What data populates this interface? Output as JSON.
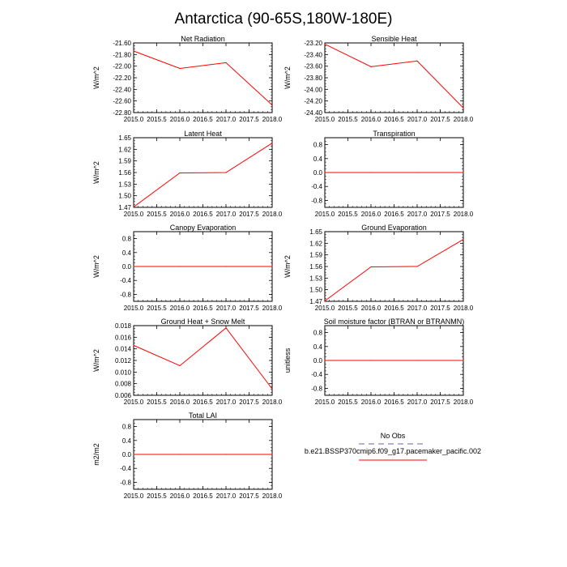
{
  "figure_title": "Antarctica (90-65S,180W-180E)",
  "legend": {
    "items": [
      {
        "label": "No Obs",
        "color": "#9999cc",
        "dashed": true
      },
      {
        "label": "b.e21.BSSP370cmip6.f09_g17.pacemaker_pacific.002",
        "color": "#ff0000",
        "dashed": false
      }
    ]
  },
  "chart_data": [
    {
      "type": "line",
      "title": "Net Radiation",
      "ylabel": "W/m^2",
      "x": [
        2015.0,
        2016.0,
        2017.0,
        2018.0
      ],
      "values": [
        -21.74,
        -22.04,
        -21.94,
        -22.67
      ],
      "xlim": [
        2015.0,
        2018.0
      ],
      "ylim": [
        -22.8,
        -21.6
      ],
      "xticks": [
        "2015.0",
        "2015.5",
        "2016.0",
        "2016.5",
        "2017.0",
        "2017.5",
        "2018.0"
      ],
      "yticks": [
        "-22.80",
        "-22.60",
        "-22.40",
        "-22.20",
        "-22.00",
        "-21.80",
        "-21.60"
      ],
      "series_color": "#ff0000"
    },
    {
      "type": "line",
      "title": "Sensible Heat",
      "ylabel": "W/m^2",
      "x": [
        2015.0,
        2016.0,
        2017.0,
        2018.0
      ],
      "values": [
        -23.22,
        -23.61,
        -23.51,
        -24.32
      ],
      "xlim": [
        2015.0,
        2018.0
      ],
      "ylim": [
        -24.4,
        -23.2
      ],
      "xticks": [
        "2015.0",
        "2015.5",
        "2016.0",
        "2016.5",
        "2017.0",
        "2017.5",
        "2018.0"
      ],
      "yticks": [
        "-24.40",
        "-24.20",
        "-24.00",
        "-23.80",
        "-23.60",
        "-23.40",
        "-23.20"
      ],
      "series_color": "#ff0000"
    },
    {
      "type": "line",
      "title": "Latent Heat",
      "ylabel": "W/m^2",
      "x": [
        2015.0,
        2016.0,
        2017.0,
        2018.0
      ],
      "values": [
        1.471,
        1.559,
        1.56,
        1.636
      ],
      "xlim": [
        2015.0,
        2018.0
      ],
      "ylim": [
        1.47,
        1.65
      ],
      "xticks": [
        "2015.0",
        "2015.5",
        "2016.0",
        "2016.5",
        "2017.0",
        "2017.5",
        "2018.0"
      ],
      "yticks": [
        "1.47",
        "1.50",
        "1.53",
        "1.56",
        "1.59",
        "1.62",
        "1.65"
      ],
      "series_color": "#ff0000"
    },
    {
      "type": "line",
      "title": "Transpiration",
      "ylabel": "",
      "x": [
        2015.0,
        2016.0,
        2017.0,
        2018.0
      ],
      "values": [
        0,
        0,
        0,
        0
      ],
      "xlim": [
        2015.0,
        2018.0
      ],
      "ylim": [
        -1.0,
        1.0
      ],
      "xticks": [
        "2015.0",
        "2015.5",
        "2016.0",
        "2016.5",
        "2017.0",
        "2017.5",
        "2018.0"
      ],
      "yticks": [
        "-0.8",
        "-0.4",
        "0.0",
        "0.4",
        "0.8"
      ],
      "series_color": "#ff0000"
    },
    {
      "type": "line",
      "title": "Canopy Evaporation",
      "ylabel": "W/m^2",
      "x": [
        2015.0,
        2016.0,
        2017.0,
        2018.0
      ],
      "values": [
        0,
        0,
        0,
        0
      ],
      "xlim": [
        2015.0,
        2018.0
      ],
      "ylim": [
        -1.0,
        1.0
      ],
      "xticks": [
        "2015.0",
        "2015.5",
        "2016.0",
        "2016.5",
        "2017.0",
        "2017.5",
        "2018.0"
      ],
      "yticks": [
        "-0.8",
        "-0.4",
        "0.0",
        "0.4",
        "0.8"
      ],
      "series_color": "#ff0000"
    },
    {
      "type": "line",
      "title": "Ground Evaporation",
      "ylabel": "W/m^2",
      "x": [
        2015.0,
        2016.0,
        2017.0,
        2018.0
      ],
      "values": [
        1.471,
        1.559,
        1.56,
        1.63
      ],
      "xlim": [
        2015.0,
        2018.0
      ],
      "ylim": [
        1.47,
        1.65
      ],
      "xticks": [
        "2015.0",
        "2015.5",
        "2016.0",
        "2016.5",
        "2017.0",
        "2017.5",
        "2018.0"
      ],
      "yticks": [
        "1.47",
        "1.50",
        "1.53",
        "1.56",
        "1.59",
        "1.62",
        "1.65"
      ],
      "series_color": "#ff0000"
    },
    {
      "type": "line",
      "title": "Ground Heat + Snow Melt",
      "ylabel": "W/m^2",
      "x": [
        2015.0,
        2016.0,
        2017.0,
        2018.0
      ],
      "values": [
        0.0146,
        0.0111,
        0.0176,
        0.0071
      ],
      "xlim": [
        2015.0,
        2018.0
      ],
      "ylim": [
        0.006,
        0.018
      ],
      "xticks": [
        "2015.0",
        "2015.5",
        "2016.0",
        "2016.5",
        "2017.0",
        "2017.5",
        "2018.0"
      ],
      "yticks": [
        "0.006",
        "0.008",
        "0.010",
        "0.012",
        "0.014",
        "0.016",
        "0.018"
      ],
      "series_color": "#ff0000"
    },
    {
      "type": "line",
      "title": "Soil moisture factor (BTRAN or BTRANMN)",
      "ylabel": "unitless",
      "x": [
        2015.0,
        2016.0,
        2017.0,
        2018.0
      ],
      "values": [
        0,
        0,
        0,
        0
      ],
      "xlim": [
        2015.0,
        2018.0
      ],
      "ylim": [
        -1.0,
        1.0
      ],
      "xticks": [
        "2015.0",
        "2015.5",
        "2016.0",
        "2016.5",
        "2017.0",
        "2017.5",
        "2018.0"
      ],
      "yticks": [
        "-0.8",
        "-0.4",
        "0.0",
        "0.4",
        "0.8"
      ],
      "series_color": "#ff0000"
    },
    {
      "type": "line",
      "title": "Total LAI",
      "ylabel": "m2/m2",
      "x": [
        2015.0,
        2016.0,
        2017.0,
        2018.0
      ],
      "values": [
        0,
        0,
        0,
        0
      ],
      "xlim": [
        2015.0,
        2018.0
      ],
      "ylim": [
        -1.0,
        1.0
      ],
      "xticks": [
        "2015.0",
        "2015.5",
        "2016.0",
        "2016.5",
        "2017.0",
        "2017.5",
        "2018.0"
      ],
      "yticks": [
        "-0.8",
        "-0.4",
        "0.0",
        "0.4",
        "0.8"
      ],
      "series_color": "#ff0000"
    }
  ]
}
